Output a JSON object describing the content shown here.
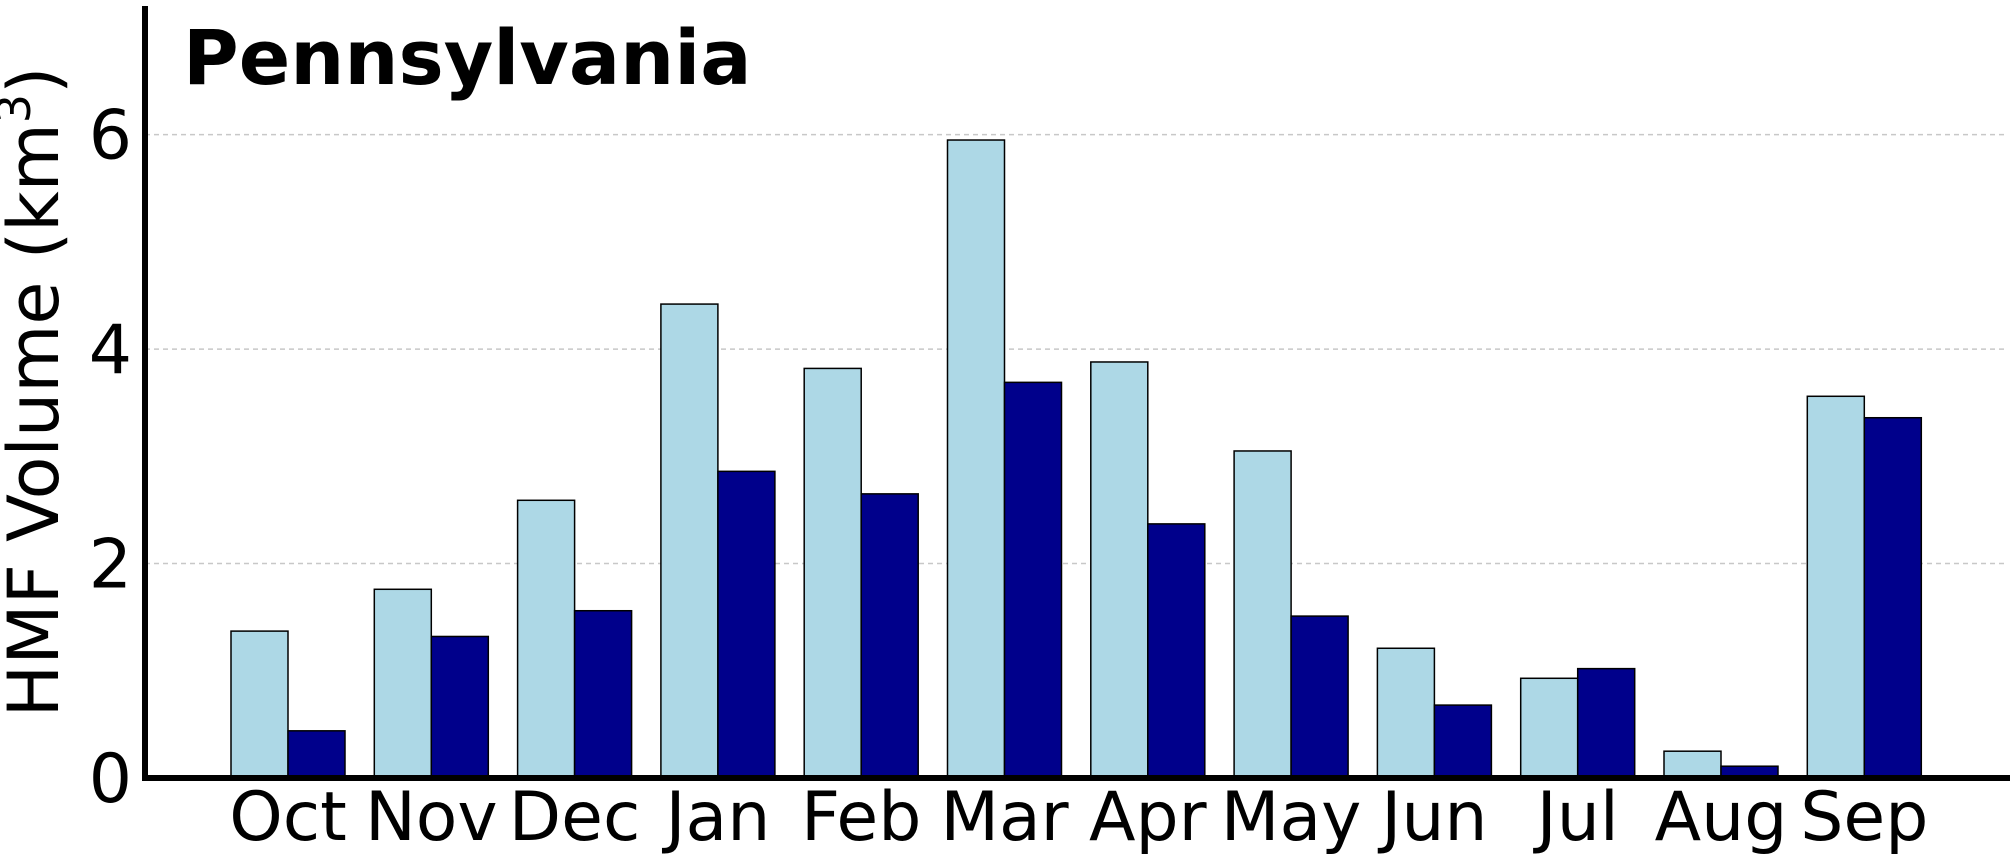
{
  "chart_data": {
    "type": "bar",
    "title": "Pennsylvania",
    "ylabel": "HMF Volume (km³)",
    "ylabel_text": "HMF Volume (km",
    "ylabel_superscript": "3",
    "ylabel_close": ")",
    "categories": [
      "Oct",
      "Nov",
      "Dec",
      "Jan",
      "Feb",
      "Mar",
      "Apr",
      "May",
      "Jun",
      "Jul",
      "Aug",
      "Sep"
    ],
    "ylim": [
      0,
      7.2
    ],
    "yticks": [
      0,
      2,
      4,
      6
    ],
    "ytick_labels": [
      "0",
      "2",
      "4",
      "6"
    ],
    "grid": "horizontal dashed",
    "series": [
      {
        "color": "#add8e6",
        "values": [
          1.37,
          1.76,
          2.59,
          4.42,
          3.82,
          5.95,
          3.88,
          3.05,
          1.21,
          0.93,
          0.25,
          3.56
        ]
      },
      {
        "color": "#00008b",
        "values": [
          0.44,
          1.32,
          1.56,
          2.86,
          2.65,
          3.69,
          2.37,
          1.51,
          0.68,
          1.02,
          0.11,
          3.36
        ]
      }
    ]
  }
}
